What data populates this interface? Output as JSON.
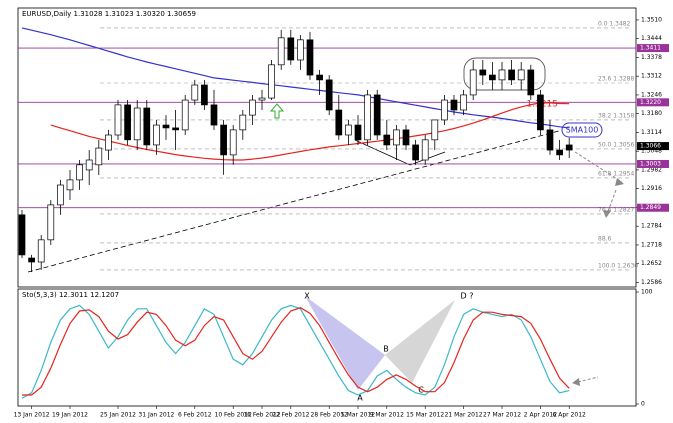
{
  "chart_data": [
    {
      "type": "candlestick",
      "title": "EURUSD,Daily 1.31028 1.31023 1.30320 1.30659",
      "ylim": [
        1.257,
        1.3552
      ],
      "yticks": [
        {
          "value": 1.351,
          "label": "1.3510"
        },
        1.3444,
        1.3378,
        1.3312,
        1.3246,
        {
          "value": 1.318,
          "label": "1.3180"
        },
        1.3114,
        1.3048,
        1.2982,
        1.2916,
        {
          "value": 1.285,
          "label": "1.2850"
        },
        1.2784,
        1.2718,
        1.2652,
        1.2586
      ],
      "open": [
        1.2824,
        1.2672,
        1.2658,
        1.2736,
        1.2859,
        1.2912,
        1.2947,
        1.2982,
        1.3,
        1.3052,
        1.3105,
        1.3211,
        1.3088,
        1.32,
        1.307,
        1.314,
        1.313,
        1.3123,
        1.3228,
        1.3281,
        1.3211,
        1.314,
        1.3035,
        1.3123,
        1.3175,
        1.3228,
        1.3235,
        1.3352,
        1.3447,
        1.3369,
        1.344,
        1.3316,
        1.3299,
        1.3193,
        1.3105,
        1.314,
        1.3088,
        1.3246,
        1.3105,
        1.307,
        1.3123,
        1.307,
        1.3017,
        1.3088,
        1.3158,
        1.3228,
        1.3193,
        1.3246,
        1.3334,
        1.3316,
        1.3299,
        1.3334,
        1.3299,
        1.3334,
        1.3246,
        1.3123,
        1.3052,
        1.307
      ],
      "high": [
        1.2841,
        1.2683,
        1.2753,
        1.2876,
        1.2947,
        1.2982,
        1.3017,
        1.3052,
        1.3088,
        1.3123,
        1.3228,
        1.3228,
        1.3228,
        1.3228,
        1.3158,
        1.3175,
        1.3193,
        1.3246,
        1.3299,
        1.3299,
        1.3264,
        1.3158,
        1.314,
        1.3193,
        1.3246,
        1.3264,
        1.3369,
        1.3475,
        1.3475,
        1.3457,
        1.3468,
        1.3334,
        1.3316,
        1.3246,
        1.3158,
        1.3175,
        1.3264,
        1.3264,
        1.3158,
        1.314,
        1.314,
        1.3088,
        1.3105,
        1.3158,
        1.3246,
        1.3246,
        1.3264,
        1.3369,
        1.3369,
        1.3362,
        1.3362,
        1.3369,
        1.3362,
        1.3352,
        1.3264,
        1.3158,
        1.3088,
        1.3095
      ],
      "low": [
        1.2672,
        1.2623,
        1.263,
        1.2718,
        1.2824,
        1.2876,
        1.2912,
        1.2929,
        1.2964,
        1.3017,
        1.3088,
        1.307,
        1.3052,
        1.3052,
        1.3035,
        1.3088,
        1.3052,
        1.3105,
        1.3211,
        1.3193,
        1.3123,
        1.2965,
        1.3,
        1.3088,
        1.314,
        1.3193,
        1.3228,
        1.3334,
        1.3352,
        1.3334,
        1.3299,
        1.3246,
        1.3175,
        1.3088,
        1.307,
        1.307,
        1.307,
        1.3088,
        1.3052,
        1.3017,
        1.3052,
        1.3,
        1.3,
        1.3052,
        1.314,
        1.3175,
        1.3175,
        1.3228,
        1.3281,
        1.3264,
        1.3264,
        1.3281,
        1.3264,
        1.3228,
        1.3105,
        1.3035,
        1.3017,
        1.3024
      ],
      "close": [
        1.2683,
        1.2658,
        1.2736,
        1.2859,
        1.2929,
        1.2947,
        1.3,
        1.3017,
        1.3059,
        1.3105,
        1.3211,
        1.3088,
        1.32,
        1.307,
        1.314,
        1.313,
        1.3123,
        1.3228,
        1.3281,
        1.3211,
        1.314,
        1.3035,
        1.3123,
        1.3175,
        1.3228,
        1.3235,
        1.3352,
        1.3447,
        1.3369,
        1.344,
        1.3316,
        1.3299,
        1.3193,
        1.3105,
        1.314,
        1.3088,
        1.3246,
        1.3105,
        1.307,
        1.3123,
        1.307,
        1.3017,
        1.3088,
        1.3158,
        1.3228,
        1.3193,
        1.3246,
        1.3334,
        1.3316,
        1.3299,
        1.3334,
        1.3299,
        1.3334,
        1.3246,
        1.3123,
        1.3052,
        1.3035,
        1.3052
      ],
      "series": [
        {
          "color": "#3333cc",
          "values": [
            1.3482,
            1.3474,
            1.3466,
            1.3458,
            1.3449,
            1.344,
            1.343,
            1.342,
            1.341,
            1.34,
            1.339,
            1.338,
            1.3371,
            1.3362,
            1.3354,
            1.3346,
            1.3338,
            1.333,
            1.3322,
            1.3314,
            1.3306,
            1.3302,
            1.3298,
            1.3294,
            1.329,
            1.3286,
            1.3282,
            1.3278,
            1.3274,
            1.327,
            1.3266,
            1.3262,
            1.3258,
            1.3254,
            1.325,
            1.3246,
            1.324,
            1.3234,
            1.3228,
            1.3222,
            1.3216,
            1.321,
            1.3204,
            1.3198,
            1.3192,
            1.3186,
            1.3181,
            1.3176,
            1.3172,
            1.3168,
            1.3163,
            1.3158,
            1.3153,
            1.3148,
            1.3144,
            1.3139,
            1.3134,
            1.313
          ]
        },
        {
          "color": "#e8231e",
          "values": [
            null,
            null,
            null,
            1.314,
            1.313,
            1.312,
            1.311,
            1.31,
            1.3092,
            1.3084,
            1.3076,
            1.3068,
            1.3061,
            1.3054,
            1.3048,
            1.3042,
            1.3036,
            1.3031,
            1.3027,
            1.3023,
            1.302,
            1.3018,
            1.3017,
            1.3017,
            1.302,
            1.3024,
            1.3029,
            1.3035,
            1.3041,
            1.3047,
            1.3053,
            1.3058,
            1.3063,
            1.3067,
            1.3071,
            1.3075,
            1.3079,
            1.3083,
            1.3087,
            1.3092,
            1.3097,
            1.3102,
            1.3107,
            1.3113,
            1.312,
            1.3128,
            1.3137,
            1.3147,
            1.3158,
            1.317,
            1.3182,
            1.3194,
            1.3204,
            1.3212,
            1.3218,
            1.3218,
            1.3216,
            1.3215
          ]
        }
      ],
      "levels": [
        {
          "value": 1.3411,
          "label": "1.3411",
          "color": "#993399"
        },
        {
          "value": 1.322,
          "label": "1.3220",
          "color": "#993399"
        },
        {
          "value": 1.3003,
          "label": "1.3003",
          "color": "#993399"
        },
        {
          "value": 1.2849,
          "label": "1.2849",
          "color": "#993399"
        },
        {
          "value": 1.3066,
          "label": "1.3066",
          "color": "#000000"
        }
      ],
      "fib_levels": [
        {
          "value": 1.3482,
          "label": "0.0 1.3482"
        },
        {
          "value": 1.3288,
          "label": "23.6 1.3288"
        },
        {
          "value": 1.3158,
          "label": "38.2 1.3158"
        },
        {
          "value": 1.3056,
          "label": "50.0 1.3056"
        },
        {
          "value": 1.2954,
          "label": "61.8 1.2954"
        },
        {
          "value": 1.2827,
          "label": "76.4 1.2827"
        },
        {
          "value": 1.2725,
          "label": "88.6"
        },
        {
          "value": 1.263,
          "label": "100.0 1.2630"
        }
      ],
      "annotations": {
        "ma_value": "1.3215",
        "sma": "SMA100"
      }
    },
    {
      "type": "line",
      "title": "Sto(5,3,3) 12.3011 12.1207",
      "categories": [
        null,
        "13 Jan 2012",
        null,
        null,
        null,
        "19 Jan 2012",
        null,
        null,
        null,
        null,
        "25 Jan 2012",
        null,
        null,
        null,
        "31 Jan 2012",
        null,
        null,
        null,
        "6 Feb 2012",
        null,
        null,
        null,
        "10 Feb 2012",
        null,
        null,
        "16 Feb 2012",
        null,
        null,
        "22 Feb 2012",
        null,
        null,
        null,
        "28 Feb 2012",
        null,
        null,
        "5 Mar 2012",
        null,
        null,
        "9 Mar 2012",
        null,
        null,
        null,
        "15 Mar 2012",
        null,
        null,
        null,
        "21 Mar 2012",
        null,
        null,
        null,
        "27 Mar 2012",
        null,
        null,
        null,
        "2 Apr 2012",
        null,
        null,
        "6 Apr 2012"
      ],
      "ylim": [
        0,
        100
      ],
      "yticks": [
        0,
        100
      ],
      "series": [
        {
          "color": "#3cb8c8",
          "values": [
            5,
            10,
            30,
            55,
            75,
            85,
            88,
            80,
            65,
            50,
            60,
            75,
            85,
            85,
            70,
            55,
            45,
            55,
            70,
            85,
            80,
            60,
            40,
            35,
            45,
            60,
            75,
            85,
            88,
            85,
            70,
            55,
            40,
            25,
            12,
            8,
            12,
            25,
            30,
            22,
            15,
            10,
            8,
            15,
            35,
            60,
            80,
            85,
            82,
            80,
            78,
            80,
            75,
            60,
            40,
            20,
            10,
            12
          ]
        },
        {
          "color": "#e8231e",
          "values": [
            8,
            8,
            15,
            32,
            53,
            72,
            83,
            84,
            78,
            65,
            58,
            62,
            73,
            82,
            80,
            70,
            57,
            52,
            57,
            70,
            78,
            75,
            60,
            45,
            40,
            47,
            60,
            73,
            83,
            86,
            81,
            70,
            55,
            40,
            26,
            15,
            11,
            15,
            22,
            26,
            22,
            16,
            11,
            11,
            19,
            37,
            58,
            75,
            82,
            82,
            80,
            79,
            78,
            72,
            58,
            40,
            23,
            14
          ]
        }
      ],
      "annotations": {
        "x": "X",
        "a": "A",
        "b": "B",
        "c": "C",
        "d": "D ?"
      }
    }
  ]
}
